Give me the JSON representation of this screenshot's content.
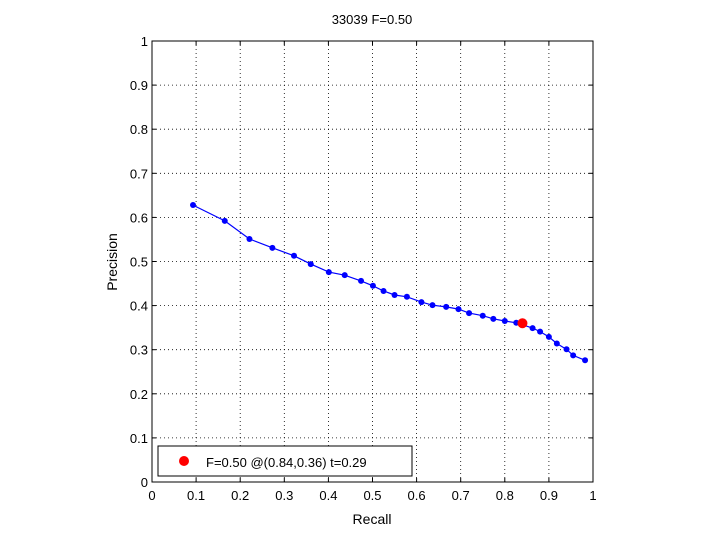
{
  "chart_data": {
    "type": "line",
    "title": "33039 F=0.50",
    "xlabel": "Recall",
    "ylabel": "Precision",
    "xlim": [
      0,
      1
    ],
    "ylim": [
      0,
      1
    ],
    "grid": true,
    "xticks": [
      "0",
      "0.1",
      "0.2",
      "0.3",
      "0.4",
      "0.5",
      "0.6",
      "0.7",
      "0.8",
      "0.9",
      "1"
    ],
    "yticks": [
      "0",
      "0.1",
      "0.2",
      "0.3",
      "0.4",
      "0.5",
      "0.6",
      "0.7",
      "0.8",
      "0.9",
      "1"
    ],
    "series": [
      {
        "color": "#0000ff",
        "marker": "dot",
        "x": [
          0.093,
          0.165,
          0.221,
          0.273,
          0.322,
          0.36,
          0.401,
          0.437,
          0.474,
          0.501,
          0.525,
          0.55,
          0.578,
          0.611,
          0.636,
          0.667,
          0.695,
          0.719,
          0.75,
          0.774,
          0.8,
          0.826,
          0.863,
          0.88,
          0.9,
          0.918,
          0.94,
          0.955,
          0.982
        ],
        "y": [
          0.628,
          0.592,
          0.551,
          0.531,
          0.513,
          0.494,
          0.476,
          0.469,
          0.456,
          0.445,
          0.433,
          0.424,
          0.42,
          0.408,
          0.401,
          0.397,
          0.392,
          0.383,
          0.377,
          0.37,
          0.365,
          0.361,
          0.349,
          0.341,
          0.329,
          0.314,
          0.301,
          0.287,
          0.276
        ]
      }
    ],
    "highlight": {
      "x": 0.84,
      "y": 0.36,
      "color": "#ff0000"
    },
    "legend": {
      "placement": "bottom-left",
      "label": "F=0.50 @(0.84,0.36) t=0.29"
    }
  }
}
